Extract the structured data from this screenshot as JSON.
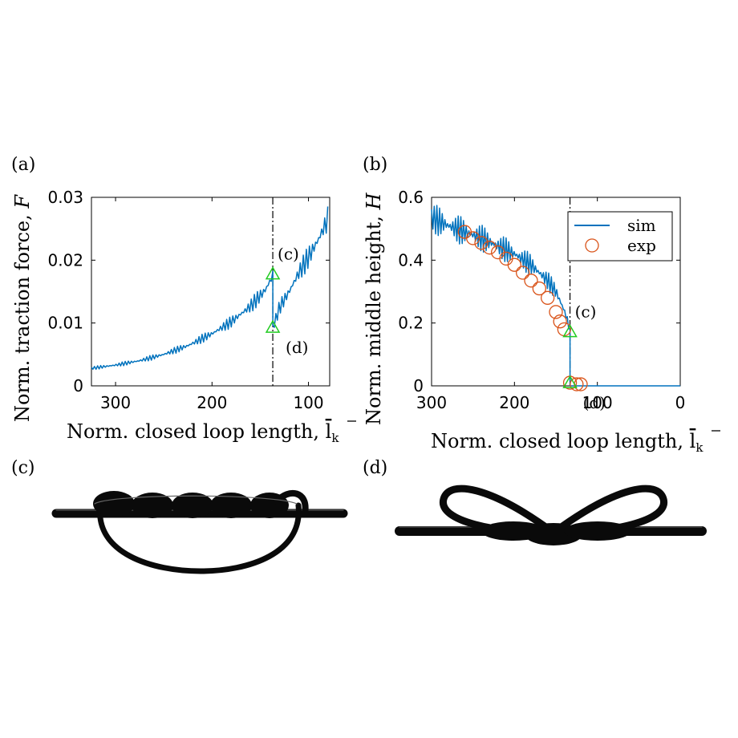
{
  "panel_labels": {
    "a": "(a)",
    "b": "(b)",
    "c": "(c)",
    "d": "(d)"
  },
  "colors": {
    "sim": "#0072BD",
    "exp": "#D95319",
    "marker": "#22CC22",
    "axis": "#000000"
  },
  "chart_data": [
    {
      "type": "line",
      "panel": "(a)",
      "xlabel_text": "Norm. closed loop length, ",
      "xlabel_symbol": "l",
      "xlabel_sub": "k",
      "ylabel_text": "Norm. traction force, ",
      "ylabel_symbol": "F",
      "xlim": [
        325,
        78
      ],
      "ylim": [
        0,
        0.03
      ],
      "xticks": [
        300,
        200,
        100
      ],
      "xtick_labels": [
        "300",
        "200",
        "100"
      ],
      "yticks": [
        0,
        0.01,
        0.02,
        0.03
      ],
      "ytick_labels": [
        "0",
        "0.01",
        "0.02",
        "0.03"
      ],
      "vline_x": 137,
      "series": [
        {
          "name": "sim",
          "kind": "oscillating",
          "x": [
            325,
            300,
            275,
            250,
            225,
            200,
            180,
            160,
            145,
            138,
            137,
            137,
            130,
            120,
            110,
            100,
            90,
            80
          ],
          "y": [
            0.0028,
            0.0033,
            0.004,
            0.005,
            0.0064,
            0.0083,
            0.0102,
            0.0127,
            0.0152,
            0.0172,
            0.0176,
            0.0092,
            0.0125,
            0.015,
            0.018,
            0.0205,
            0.0232,
            0.0265
          ]
        }
      ],
      "markers": [
        {
          "x": 137,
          "y": 0.0178,
          "label": "(c)"
        },
        {
          "x": 137,
          "y": 0.0093,
          "label": "(d)"
        }
      ]
    },
    {
      "type": "line",
      "panel": "(b)",
      "xlabel_text": "Norm. closed loop length, ",
      "xlabel_symbol": "l",
      "xlabel_sub": "k",
      "ylabel_text": "Norm. middle height, ",
      "ylabel_symbol": "H",
      "xlim": [
        300,
        0
      ],
      "ylim": [
        0,
        0.6
      ],
      "xticks": [
        300,
        200,
        100,
        0
      ],
      "xtick_labels": [
        "300",
        "200",
        "100",
        "0"
      ],
      "yticks": [
        0,
        0.2,
        0.4,
        0.6
      ],
      "ytick_labels": [
        "0",
        "0.2",
        "0.4",
        "0.6"
      ],
      "vline_x": 133,
      "legend": {
        "placement": "top-right",
        "entries": [
          "sim",
          "exp"
        ]
      },
      "series": [
        {
          "name": "sim",
          "kind": "oscillating",
          "x": [
            300,
            280,
            260,
            240,
            220,
            200,
            180,
            160,
            150,
            140,
            135,
            133,
            133,
            120,
            100,
            50,
            0
          ],
          "y": [
            0.535,
            0.51,
            0.49,
            0.47,
            0.445,
            0.42,
            0.385,
            0.335,
            0.3,
            0.24,
            0.2,
            0.17,
            0.0,
            0.0,
            0.0,
            0.0,
            0.0
          ]
        },
        {
          "name": "exp",
          "kind": "scatter",
          "x": [
            260,
            250,
            240,
            230,
            220,
            210,
            200,
            190,
            180,
            170,
            160,
            150,
            145,
            140,
            133,
            125,
            120
          ],
          "y": [
            0.49,
            0.47,
            0.455,
            0.44,
            0.425,
            0.405,
            0.385,
            0.36,
            0.335,
            0.31,
            0.28,
            0.235,
            0.205,
            0.18,
            0.01,
            0.005,
            0.005
          ]
        }
      ],
      "markers": [
        {
          "x": 133,
          "y": 0.172,
          "label": "(c)"
        },
        {
          "x": 133,
          "y": 0.01,
          "label": "(d)"
        }
      ]
    }
  ]
}
